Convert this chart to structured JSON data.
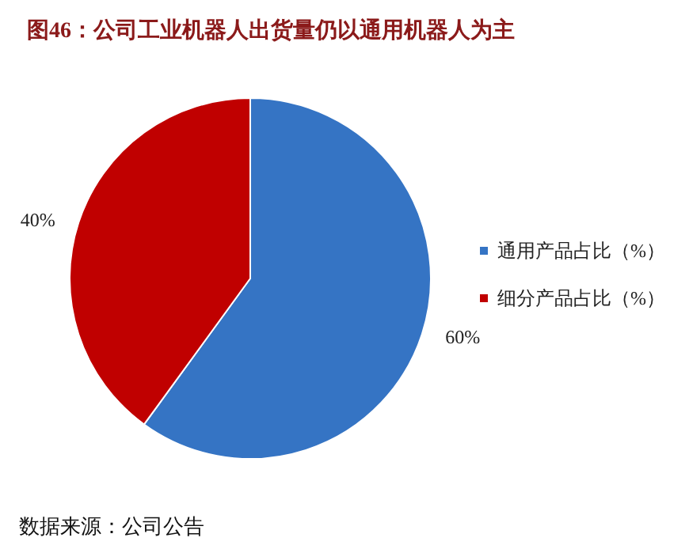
{
  "chart_data": {
    "type": "pie",
    "title": "图46：公司工业机器人出货量仍以通用机器人为主",
    "categories": [
      "通用产品占比（%）",
      "细分产品占比（%）"
    ],
    "values": [
      60,
      40
    ],
    "colors": [
      "#3574c4",
      "#c00000"
    ],
    "value_labels": [
      "60%",
      "40%"
    ],
    "legend": "right",
    "annotations": [
      "数据来源：公司公告"
    ]
  }
}
